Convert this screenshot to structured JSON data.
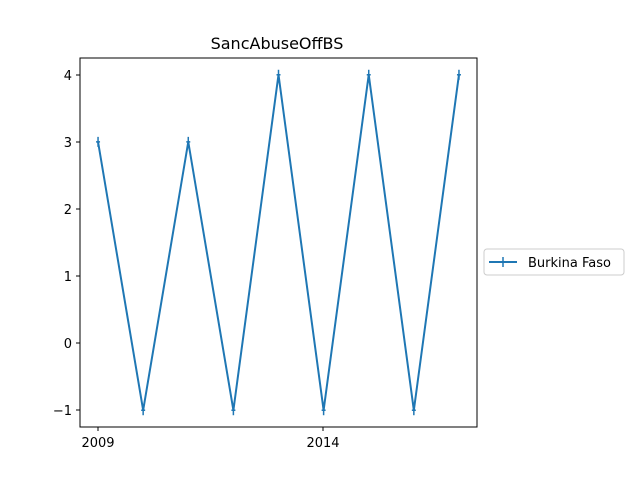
{
  "chart_data": {
    "type": "line",
    "title": "SancAbuseOffBS",
    "xlabel": "",
    "ylabel": "",
    "x": [
      2009,
      2010,
      2011,
      2012,
      2013,
      2014,
      2015,
      2016,
      2017
    ],
    "x_ticks": [
      "2009",
      "2014"
    ],
    "y_ticks": [
      "4",
      "3",
      "2",
      "1",
      "0",
      "−1"
    ],
    "xlim": [
      2008.6,
      2017.4
    ],
    "ylim": [
      -1.25,
      4.25
    ],
    "grid": false,
    "legend_position": "right",
    "series": [
      {
        "name": "Burkina Faso",
        "values": [
          3,
          -1,
          3,
          -1,
          4,
          -1,
          4,
          -1,
          4
        ],
        "color": "#1f77b4",
        "marker": "+"
      }
    ]
  }
}
